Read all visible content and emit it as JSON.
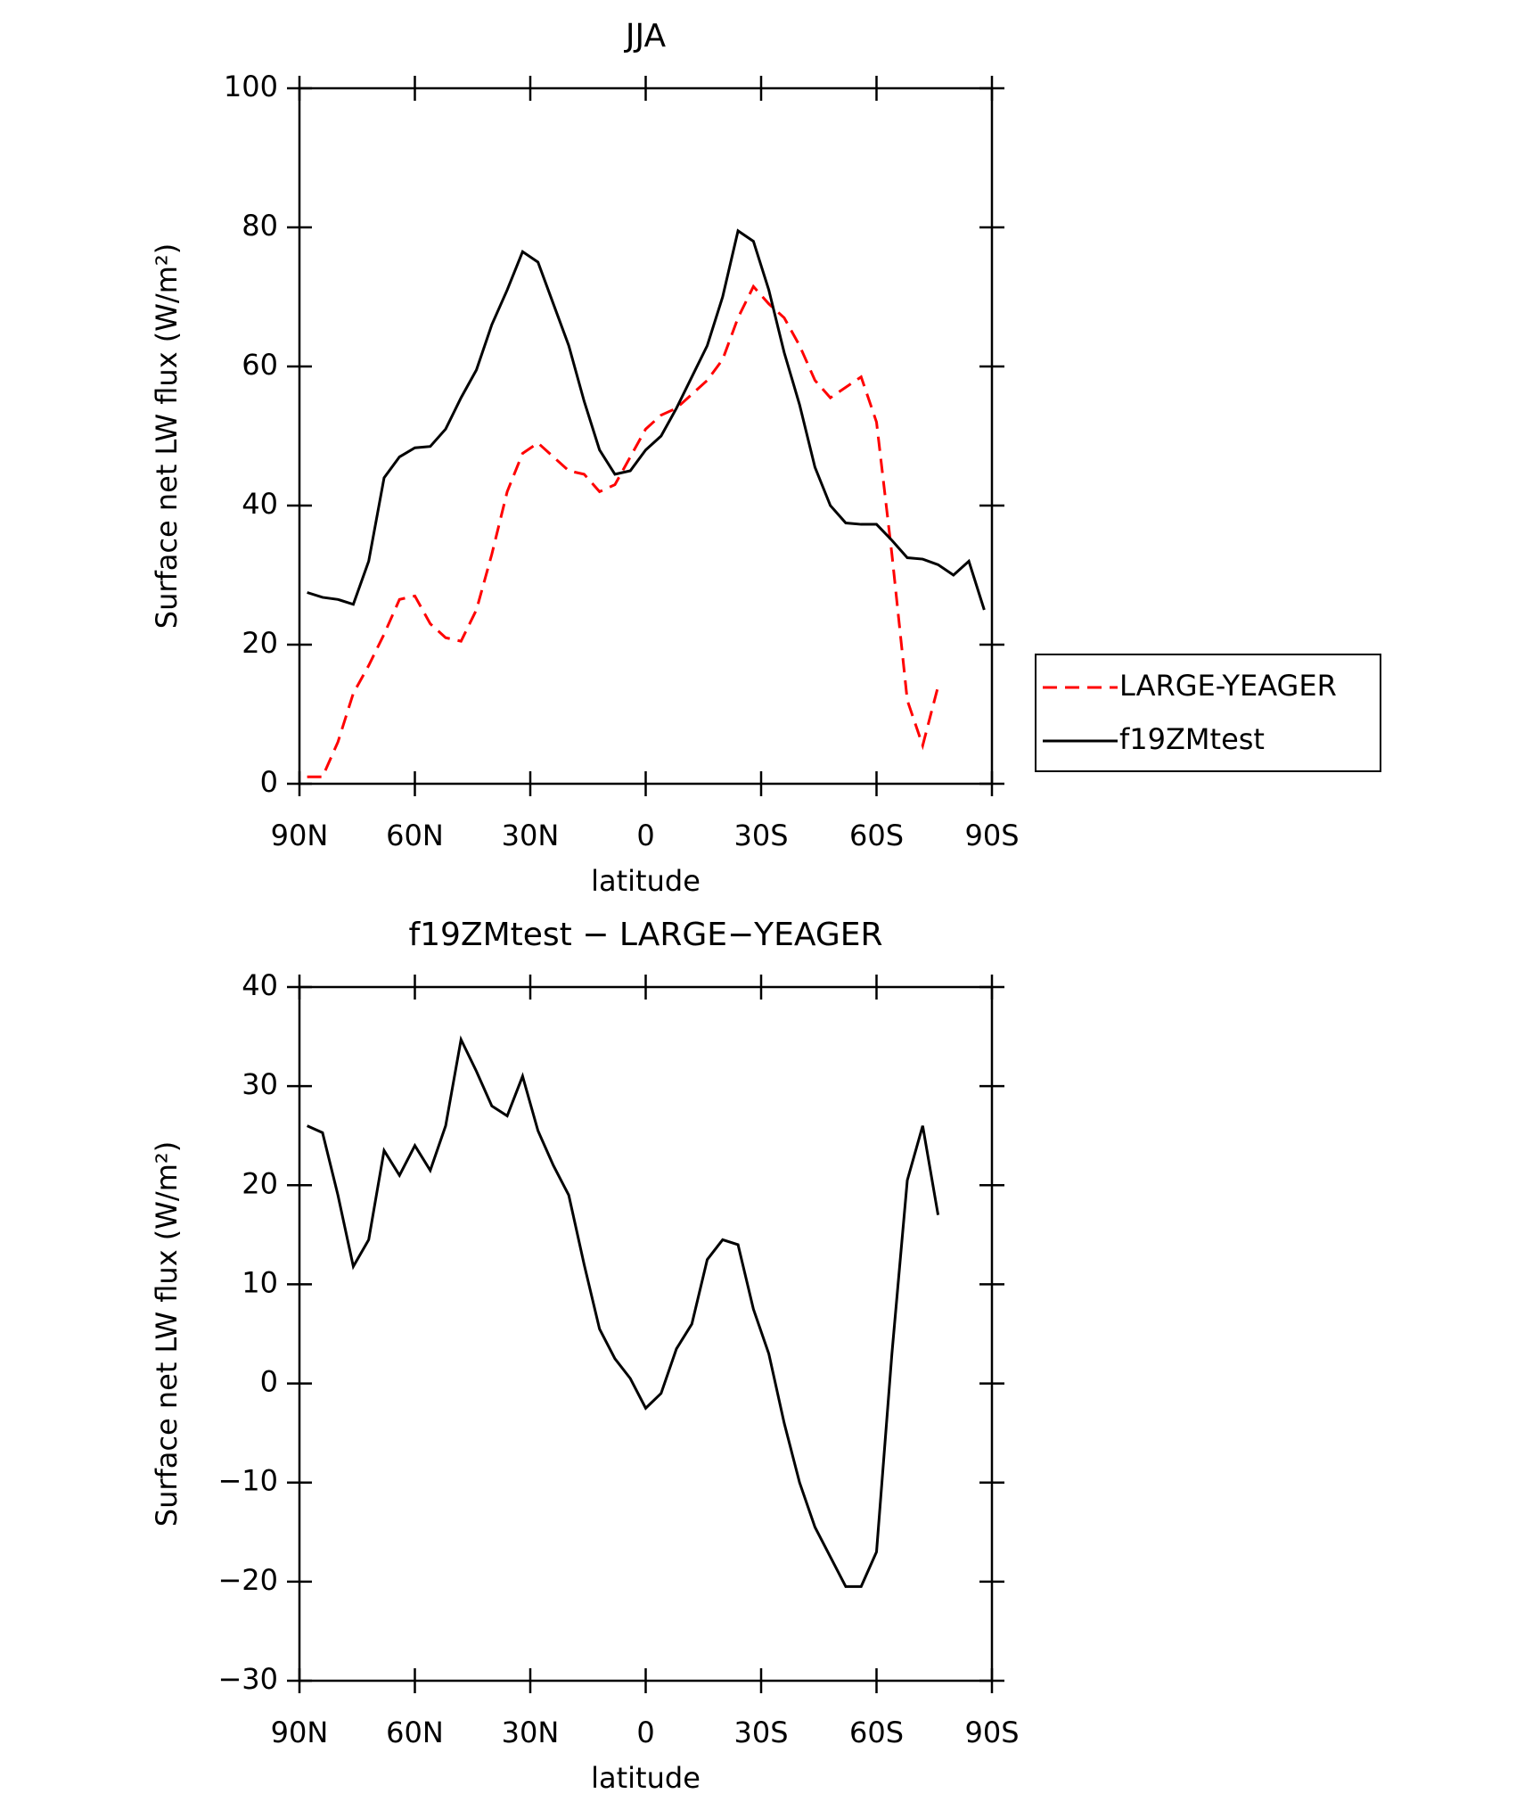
{
  "chart_data": [
    {
      "type": "line",
      "title": "JJA",
      "xlabel": "latitude",
      "ylabel": "Surface net LW flux (W/m²)",
      "x": [
        88,
        84,
        80,
        76,
        72,
        68,
        64,
        60,
        56,
        52,
        48,
        44,
        40,
        36,
        32,
        28,
        24,
        20,
        16,
        12,
        8,
        4,
        0,
        -4,
        -8,
        -12,
        -16,
        -20,
        -24,
        -28,
        -32,
        -36,
        -40,
        -44,
        -48,
        -52,
        -56,
        -60,
        -64,
        -68,
        -72,
        -76,
        -80,
        -84,
        -88
      ],
      "xlim": [
        90,
        -90
      ],
      "xticks": [
        {
          "value": 90,
          "label": "90N"
        },
        {
          "value": 60,
          "label": "60N"
        },
        {
          "value": 30,
          "label": "30N"
        },
        0,
        {
          "value": -30,
          "label": "30S"
        },
        {
          "value": -60,
          "label": "60S"
        },
        {
          "value": -90,
          "label": "90S"
        }
      ],
      "ylim": [
        0,
        100
      ],
      "yticks": [
        0,
        20,
        40,
        60,
        80,
        100
      ],
      "legend": "right",
      "series": [
        {
          "name": "LARGE-YEAGER",
          "color": "#ff0000",
          "dash": true,
          "values": [
            1,
            1,
            6,
            13,
            17,
            21.5,
            26.5,
            27,
            23,
            21,
            20.5,
            25,
            33,
            42,
            47.5,
            49,
            47,
            45,
            44.5,
            42,
            43,
            47,
            51,
            53,
            54,
            56,
            58,
            61,
            67,
            71.5,
            69,
            67,
            63,
            58,
            55.5,
            57,
            58.5,
            52,
            33,
            12,
            5.5,
            14,
            null,
            null,
            null
          ]
        },
        {
          "name": "f19ZMtest",
          "color": "#000000",
          "dash": false,
          "values": [
            27.5,
            26.8,
            26.5,
            25.8,
            32,
            44,
            47,
            48.3,
            48.5,
            51,
            55.5,
            59.5,
            66,
            71,
            76.5,
            75,
            69,
            63,
            55,
            48,
            44.5,
            45,
            48,
            50,
            54,
            58.5,
            63,
            70,
            79.5,
            78,
            71,
            62,
            54.5,
            45.5,
            40,
            37.5,
            37.3,
            37.3,
            35,
            32.5,
            32.3,
            31.5,
            30,
            32,
            25
          ]
        }
      ]
    },
    {
      "type": "line",
      "title": "f19ZMtest − LARGE−YEAGER",
      "xlabel": "latitude",
      "ylabel": "Surface net LW flux (W/m²)",
      "x": [
        88,
        84,
        80,
        76,
        72,
        68,
        64,
        60,
        56,
        52,
        48,
        44,
        40,
        36,
        32,
        28,
        24,
        20,
        16,
        12,
        8,
        4,
        0,
        -4,
        -8,
        -12,
        -16,
        -20,
        -24,
        -28,
        -32,
        -36,
        -40,
        -44,
        -48,
        -52,
        -56,
        -60,
        -64,
        -68,
        -72,
        -76,
        -80,
        -84,
        -88
      ],
      "xlim": [
        90,
        -90
      ],
      "xticks": [
        {
          "value": 90,
          "label": "90N"
        },
        {
          "value": 60,
          "label": "60N"
        },
        {
          "value": 30,
          "label": "30N"
        },
        0,
        {
          "value": -30,
          "label": "30S"
        },
        {
          "value": -60,
          "label": "60S"
        },
        {
          "value": -90,
          "label": "90S"
        }
      ],
      "ylim": [
        -30,
        40
      ],
      "yticks": [
        {
          "value": -30,
          "label": "−30"
        },
        {
          "value": -20,
          "label": "−20"
        },
        {
          "value": -10,
          "label": "−10"
        },
        0,
        10,
        20,
        30,
        40
      ],
      "series": [
        {
          "color": "#000000",
          "dash": false,
          "values": [
            26,
            25.3,
            19,
            11.8,
            14.5,
            23.5,
            21,
            24,
            21.5,
            26,
            34.7,
            31.5,
            28,
            27,
            31,
            25.5,
            22,
            19,
            12,
            5.5,
            2.5,
            0.5,
            -2.5,
            -1,
            3.5,
            6,
            12.5,
            14.5,
            14,
            7.5,
            3,
            -4,
            -10,
            -14.5,
            -17.5,
            -20.5,
            -20.5,
            -17,
            3,
            20.5,
            26,
            17,
            null,
            null,
            null
          ]
        }
      ]
    }
  ]
}
